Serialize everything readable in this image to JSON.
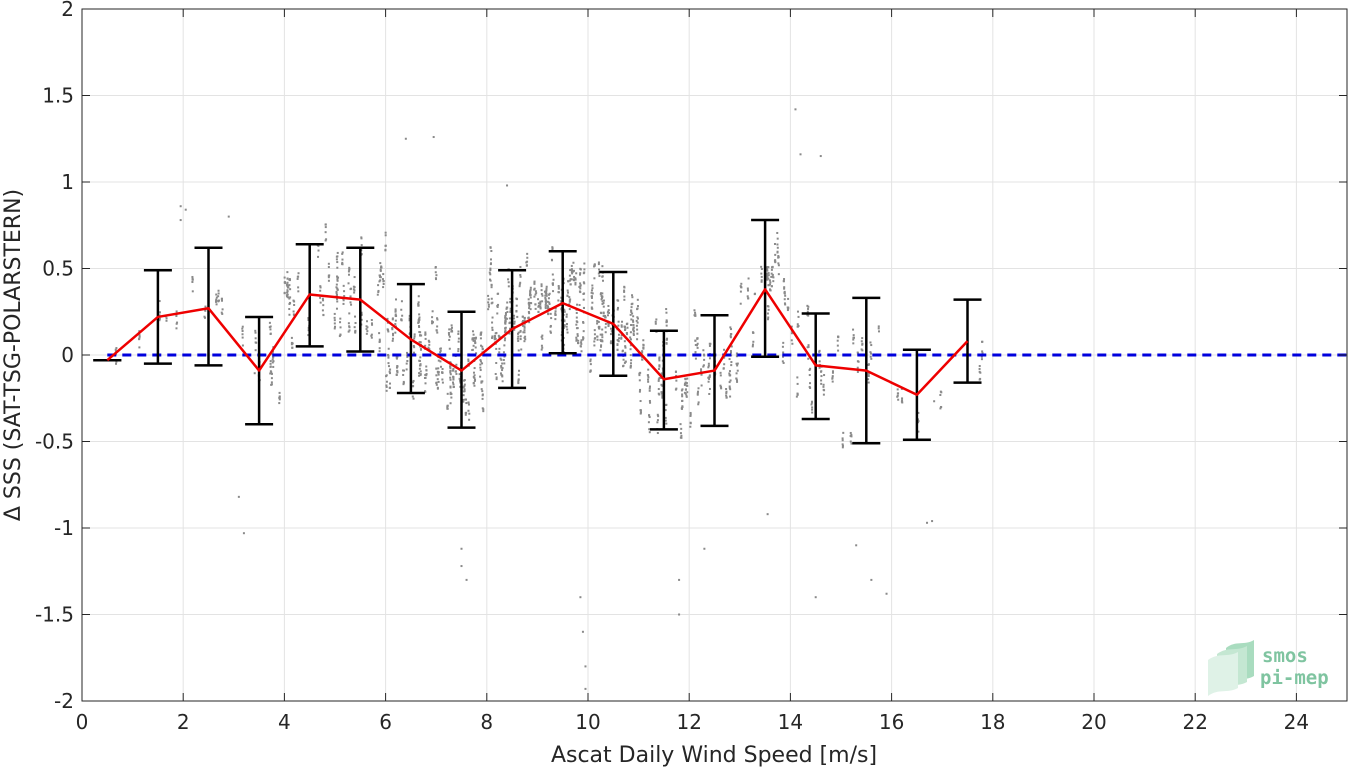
{
  "chart_data": {
    "type": "scatter",
    "title": "",
    "xlabel": "Ascat Daily Wind Speed [m/s]",
    "ylabel": "Δ SSS (SAT-TSG-POLARSTERN)",
    "xlim": [
      0,
      25
    ],
    "ylim": [
      -2,
      2
    ],
    "xticks": [
      0,
      2,
      4,
      6,
      8,
      10,
      12,
      14,
      16,
      18,
      20,
      22,
      24
    ],
    "yticks": [
      -2,
      -1.5,
      -1,
      -0.5,
      0,
      0.5,
      1,
      1.5,
      2
    ],
    "ytick_labels": [
      "-2",
      "-1.5",
      "-1",
      "-0.5",
      "0",
      "0.5",
      "1",
      "1.5",
      "2"
    ],
    "grid": true,
    "zero_line": {
      "y": 0,
      "color": "#0000dd",
      "style": "dashed"
    },
    "binned_mean": {
      "color": "#ee0000",
      "x": [
        0.5,
        1.5,
        2.5,
        3.5,
        4.5,
        5.5,
        6.5,
        7.5,
        8.5,
        9.5,
        10.5,
        11.5,
        12.5,
        13.5,
        14.5,
        15.5,
        16.5,
        17.5
      ],
      "mean": [
        -0.03,
        0.22,
        0.27,
        -0.09,
        0.35,
        0.32,
        0.09,
        -0.09,
        0.15,
        0.3,
        0.18,
        -0.14,
        -0.09,
        0.38,
        -0.06,
        -0.09,
        -0.23,
        0.08
      ],
      "lower": [
        -0.03,
        -0.05,
        -0.06,
        -0.4,
        0.05,
        0.02,
        -0.22,
        -0.42,
        -0.19,
        0.01,
        -0.12,
        -0.43,
        -0.41,
        -0.01,
        -0.37,
        -0.51,
        -0.49,
        -0.16
      ],
      "upper": [
        -0.03,
        0.49,
        0.62,
        0.22,
        0.64,
        0.62,
        0.41,
        0.25,
        0.49,
        0.6,
        0.48,
        0.14,
        0.23,
        0.78,
        0.24,
        0.33,
        0.03,
        0.32
      ]
    },
    "scatter_color": "#8a8a8a",
    "scatter_spread": [
      0.05,
      0.18,
      0.22,
      0.26,
      0.3,
      0.3,
      0.32,
      0.32,
      0.33,
      0.3,
      0.3,
      0.28,
      0.3,
      0.36,
      0.33,
      0.4,
      0.26,
      0.24
    ],
    "scatter_density": [
      6,
      22,
      30,
      55,
      95,
      130,
      170,
      200,
      220,
      230,
      220,
      150,
      120,
      110,
      70,
      45,
      25,
      12
    ],
    "scatter_outliers": [
      [
        1.95,
        0.86
      ],
      [
        1.95,
        0.78
      ],
      [
        2.05,
        0.84
      ],
      [
        2.9,
        0.8
      ],
      [
        3.1,
        -0.82
      ],
      [
        3.2,
        -1.03
      ],
      [
        6.4,
        1.25
      ],
      [
        6.95,
        1.26
      ],
      [
        7.5,
        -1.12
      ],
      [
        7.5,
        -1.22
      ],
      [
        7.6,
        -1.3
      ],
      [
        8.4,
        0.98
      ],
      [
        9.85,
        -1.4
      ],
      [
        9.9,
        -1.6
      ],
      [
        9.95,
        -1.8
      ],
      [
        9.95,
        -1.93
      ],
      [
        11.8,
        -1.3
      ],
      [
        11.8,
        -1.5
      ],
      [
        14.1,
        1.42
      ],
      [
        14.2,
        1.16
      ],
      [
        14.6,
        1.15
      ],
      [
        14.5,
        -1.4
      ],
      [
        15.3,
        -1.1
      ],
      [
        15.6,
        -1.3
      ],
      [
        15.9,
        -1.38
      ],
      [
        16.8,
        -0.96
      ],
      [
        16.7,
        -0.97
      ],
      [
        12.3,
        -1.12
      ],
      [
        13.55,
        -0.92
      ]
    ]
  },
  "logo": {
    "line1": "smos",
    "line2": "pi-mep"
  }
}
